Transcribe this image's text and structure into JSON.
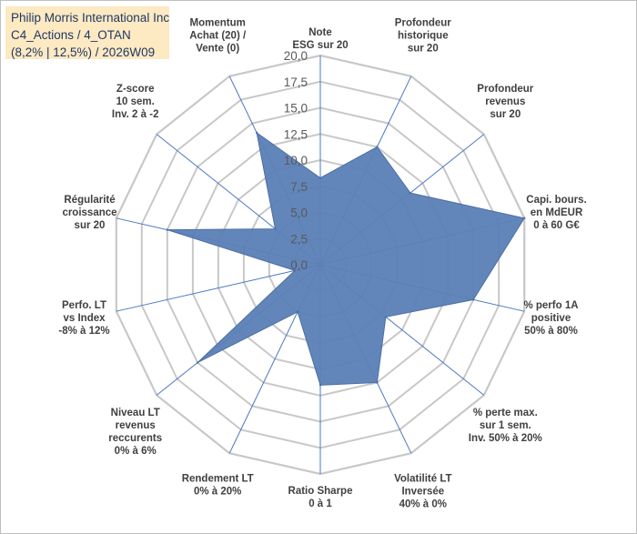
{
  "title": {
    "line1": "Philip Morris International Inc",
    "line2": "C4_Actions / 4_OTAN",
    "line3": "(8,2% | 12,5%) / 2026W09"
  },
  "chart_data": {
    "type": "radar",
    "title": "Philip Morris International Inc — C4_Actions / 4_OTAN — (8,2% | 12,5%) / 2026W09",
    "rlim": [
      0,
      20
    ],
    "r_ticks": [
      "0,0",
      "2,5",
      "5,0",
      "7,5",
      "10,0",
      "12,5",
      "15,0",
      "17,5",
      "20,0"
    ],
    "grid": true,
    "categories": [
      [
        "Note",
        "ESG sur 20"
      ],
      [
        "Profondeur",
        "historique",
        "sur 20"
      ],
      [
        "Profondeur",
        "revenus",
        "sur 20"
      ],
      [
        "Capi. bours.",
        "en MdEUR",
        "0 à 60 G€"
      ],
      [
        "% perfo 1A",
        "positive",
        "50% à 80%"
      ],
      [
        "% perte max.",
        "sur 1 sem.",
        "Inv. 50% à 20%"
      ],
      [
        "Volatilité LT",
        "Inversée",
        "40% à 0%"
      ],
      [
        "Ratio Sharpe",
        "0 à 1"
      ],
      [
        "Rendement LT",
        "0% à 20%"
      ],
      [
        "Niveau LT",
        "revenus",
        "reccurents",
        "0% à 6%"
      ],
      [
        "Perfo. LT",
        "vs Index",
        "-8% à 12%"
      ],
      [
        "Régularité",
        "croissance",
        "sur 20"
      ],
      [
        "Z-score",
        "10 sem.",
        "Inv. 2 à -2"
      ],
      [
        "Momentum",
        "Achat (20) /",
        "Vente (0)"
      ]
    ],
    "series": [
      {
        "name": "Philip Morris International Inc",
        "values": [
          8.3,
          12.5,
          11.0,
          20.0,
          15.0,
          8.0,
          12.5,
          11.5,
          5.0,
          15.0,
          2.5,
          15.0,
          5.5,
          14.0
        ],
        "color": "#5b7fb6"
      }
    ]
  },
  "colors": {
    "fill": "#5b7fb6",
    "stroke": "#4a6fa5",
    "grid": "#c8c8c8",
    "spoke": "#4a78c2",
    "title_bg": "#fde9c2"
  }
}
